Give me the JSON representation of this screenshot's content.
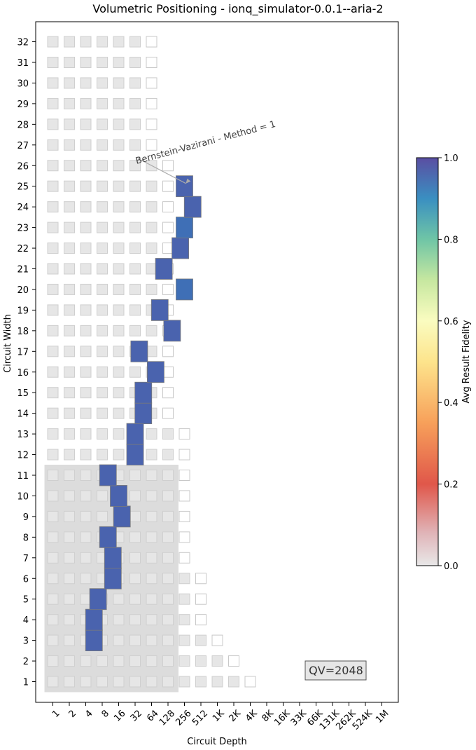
{
  "chart_data": {
    "type": "heatmap",
    "title": "Volumetric Positioning - ionq_simulator-0.0.1--aria-2",
    "xlabel": "Circuit Depth",
    "ylabel": "Circuit Width",
    "x_scale": "log2",
    "x_tick_labels": [
      "1",
      "2",
      "4",
      "8",
      "16",
      "32",
      "64",
      "128",
      "256",
      "512",
      "1K",
      "2K",
      "4K",
      "8K",
      "16K",
      "33K",
      "66K",
      "131K",
      "262K",
      "524K",
      "1M"
    ],
    "y_ticks": [
      1,
      2,
      3,
      4,
      5,
      6,
      7,
      8,
      9,
      10,
      11,
      12,
      13,
      14,
      15,
      16,
      17,
      18,
      19,
      20,
      21,
      22,
      23,
      24,
      25,
      26,
      27,
      28,
      29,
      30,
      31,
      32
    ],
    "grid": false,
    "background_tiles": {
      "note_fill": "light gray squares = volumetric background",
      "max_depth_exp_by_width": {
        "1": 12,
        "2": 11,
        "3": 10,
        "4": 9,
        "5": 9,
        "6": 9,
        "7": 8,
        "8": 8,
        "9": 8,
        "10": 8,
        "11": 8,
        "12": 8,
        "13": 8,
        "14": 7,
        "15": 7,
        "16": 7,
        "17": 7,
        "18": 7,
        "19": 7,
        "20": 7,
        "21": 7,
        "22": 7,
        "23": 7,
        "24": 7,
        "25": 7,
        "26": 7,
        "27": 6,
        "28": 6,
        "29": 6,
        "30": 6,
        "31": 6,
        "32": 6
      }
    },
    "qv_region": {
      "max_width": 11,
      "max_depth_label": "128"
    },
    "qv_label": "QV=2048",
    "series": [
      {
        "name": "Bernstein-Vazirani - Method = 1",
        "points": [
          {
            "width": 3,
            "depth": 5.0,
            "fidelity": 1.0
          },
          {
            "width": 4,
            "depth": 5.0,
            "fidelity": 1.0
          },
          {
            "width": 5,
            "depth": 5.5,
            "fidelity": 1.0
          },
          {
            "width": 6,
            "depth": 7.3,
            "fidelity": 1.0
          },
          {
            "width": 7,
            "depth": 7.3,
            "fidelity": 1.0
          },
          {
            "width": 8,
            "depth": 6.7,
            "fidelity": 1.0
          },
          {
            "width": 9,
            "depth": 8.4,
            "fidelity": 1.0
          },
          {
            "width": 10,
            "depth": 8.0,
            "fidelity": 1.0
          },
          {
            "width": 11,
            "depth": 6.7,
            "fidelity": 1.0
          },
          {
            "width": 12,
            "depth": 10.0,
            "fidelity": 1.0
          },
          {
            "width": 13,
            "depth": 10.0,
            "fidelity": 1.0
          },
          {
            "width": 14,
            "depth": 11.0,
            "fidelity": 1.0
          },
          {
            "width": 15,
            "depth": 11.0,
            "fidelity": 1.0
          },
          {
            "width": 16,
            "depth": 12.5,
            "fidelity": 1.0
          },
          {
            "width": 17,
            "depth": 10.5,
            "fidelity": 1.0
          },
          {
            "width": 18,
            "depth": 14.5,
            "fidelity": 1.0
          },
          {
            "width": 19,
            "depth": 13.0,
            "fidelity": 1.0
          },
          {
            "width": 20,
            "depth": 16.0,
            "fidelity": 0.95
          },
          {
            "width": 21,
            "depth": 13.5,
            "fidelity": 1.0
          },
          {
            "width": 22,
            "depth": 15.5,
            "fidelity": 1.0
          },
          {
            "width": 23,
            "depth": 16.0,
            "fidelity": 0.95
          },
          {
            "width": 24,
            "depth": 17.0,
            "fidelity": 1.0
          },
          {
            "width": 25,
            "depth": 16.0,
            "fidelity": 1.0
          }
        ],
        "annotation": {
          "text": "Bernstein-Vazirani - Method = 1",
          "width": 25,
          "depth": 16.0
        }
      }
    ],
    "colorbar": {
      "label": "Avg Result Fidelity",
      "ticks": [
        "0.0",
        "0.2",
        "0.4",
        "0.6",
        "0.8",
        "1.0"
      ],
      "range": [
        0.0,
        1.0
      ],
      "colors": [
        "#e8e8e8",
        "#d95f5f",
        "#f4a05c",
        "#fbe08a",
        "#fcfcc0",
        "#bfe5a0",
        "#66c2a5",
        "#2f8fbf",
        "#5050a0"
      ]
    }
  }
}
